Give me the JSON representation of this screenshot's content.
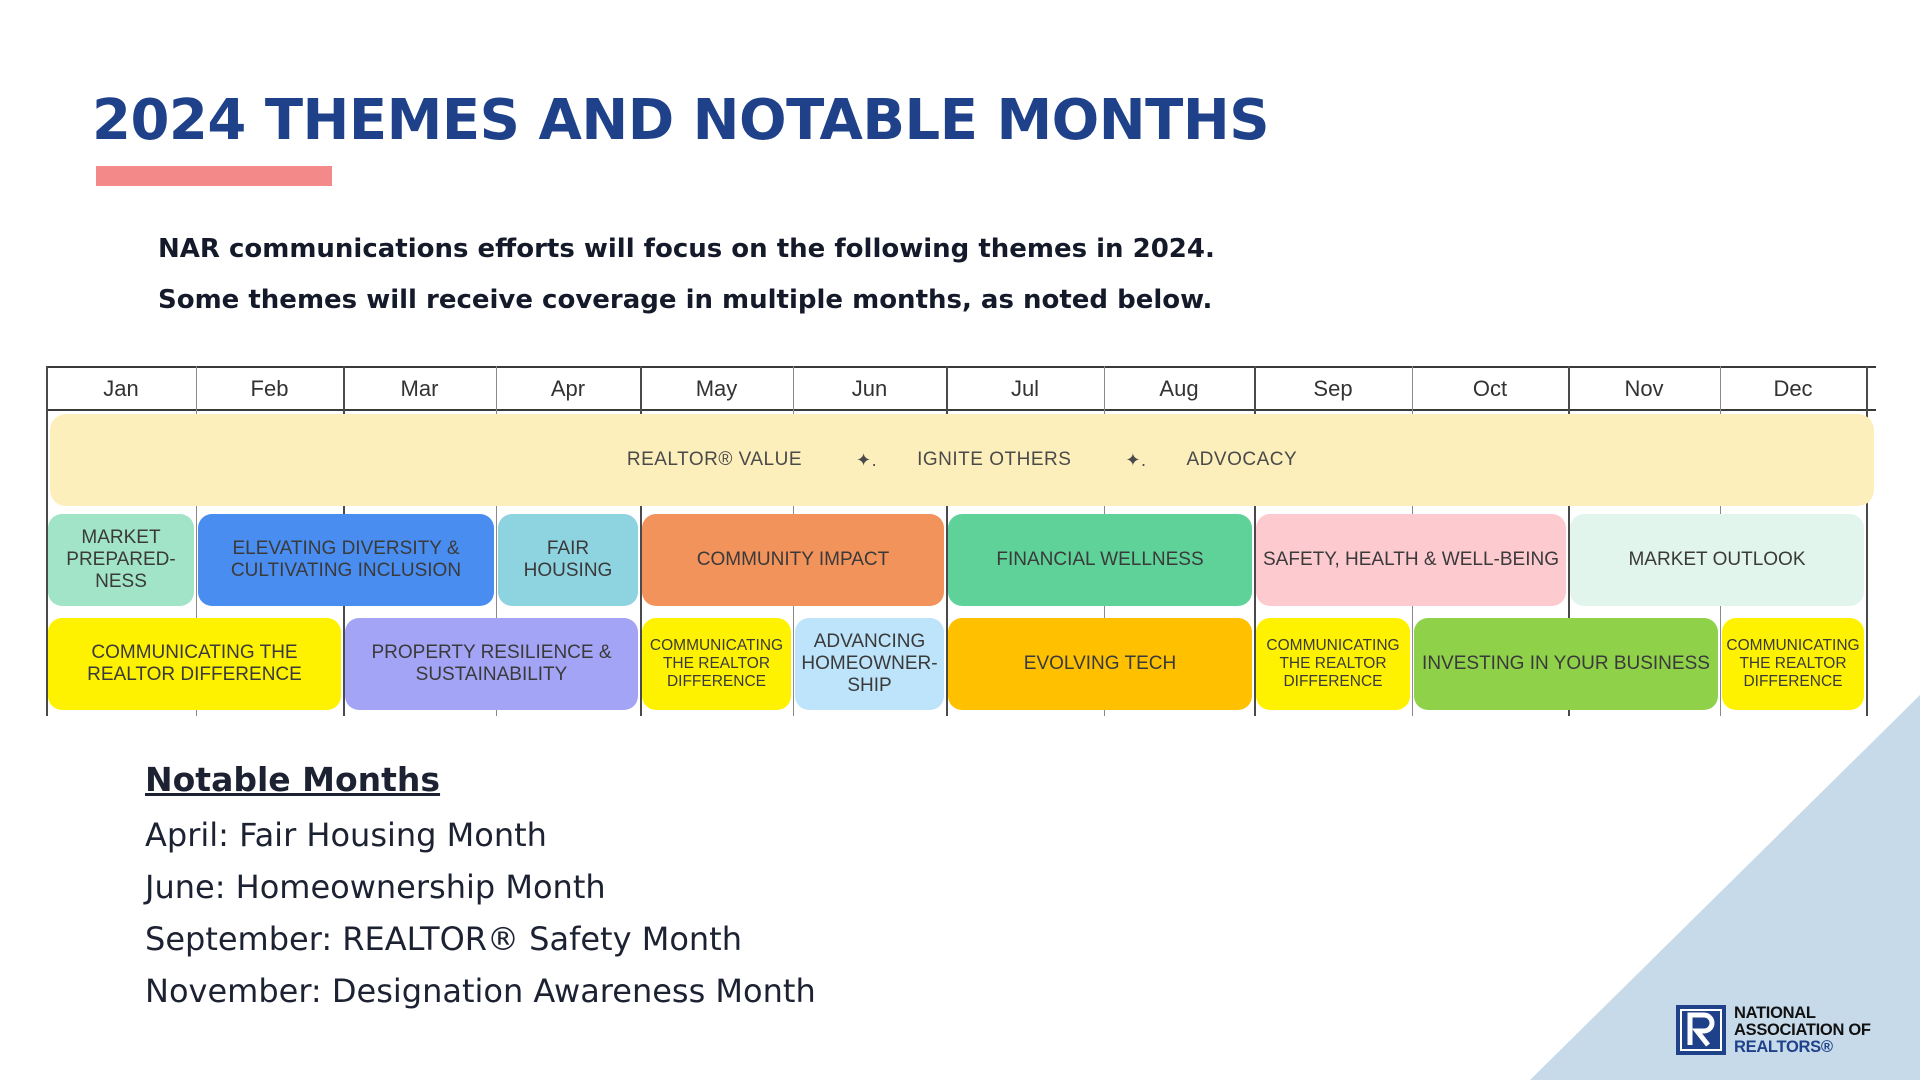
{
  "title": "2024 THEMES AND NOTABLE MONTHS",
  "intro": {
    "line1": "NAR communications efforts will focus on the following themes in 2024.",
    "line2": "Some themes will receive coverage in multiple months, as noted below."
  },
  "calendar": {
    "months": [
      "Jan",
      "Feb",
      "Mar",
      "Apr",
      "May",
      "Jun",
      "Jul",
      "Aug",
      "Sep",
      "Oct",
      "Nov",
      "Dec"
    ],
    "overarching": {
      "item1": "REALTOR® VALUE",
      "sep": "✦.",
      "item2": "IGNITE OTHERS",
      "item3": "ADVOCACY",
      "color": "#fdefbb"
    },
    "row1": [
      {
        "label": "MARKET PREPARED-NESS",
        "start_month": "Jan",
        "end_month": "Jan",
        "color": "#a2e4c8"
      },
      {
        "label": "ELEVATING DIVERSITY & CULTIVATING INCLUSION",
        "start_month": "Feb",
        "end_month": "Mar",
        "color": "#4a8df0"
      },
      {
        "label": "FAIR HOUSING",
        "start_month": "Apr",
        "end_month": "Apr",
        "color": "#8ed3e0"
      },
      {
        "label": "COMMUNITY IMPACT",
        "start_month": "May",
        "end_month": "Jun",
        "color": "#f2935c"
      },
      {
        "label": "FINANCIAL WELLNESS",
        "start_month": "Jul",
        "end_month": "Aug",
        "color": "#5fd29a"
      },
      {
        "label": "SAFETY, HEALTH & WELL-BEING",
        "start_month": "Sep",
        "end_month": "Oct",
        "color": "#fdcad0"
      },
      {
        "label": "MARKET OUTLOOK",
        "start_month": "Nov",
        "end_month": "Dec",
        "color": "#e2f5ed"
      }
    ],
    "row2": [
      {
        "label": "COMMUNICATING THE REALTOR DIFFERENCE",
        "start_month": "Jan",
        "end_month": "Feb",
        "color": "#fff200"
      },
      {
        "label": "PROPERTY RESILIENCE & SUSTAINABILITY",
        "start_month": "Mar",
        "end_month": "Apr",
        "color": "#a3a4f5"
      },
      {
        "label": "COMMUNICATING THE REALTOR DIFFERENCE",
        "start_month": "May",
        "end_month": "May",
        "color": "#fff200"
      },
      {
        "label": "ADVANCING HOMEOWNER-SHIP",
        "start_month": "Jun",
        "end_month": "Jun",
        "color": "#bde4fa"
      },
      {
        "label": "EVOLVING TECH",
        "start_month": "Jul",
        "end_month": "Aug",
        "color": "#ffc000"
      },
      {
        "label": "COMMUNICATING THE REALTOR DIFFERENCE",
        "start_month": "Sep",
        "end_month": "Sep",
        "color": "#fff200"
      },
      {
        "label": "INVESTING IN YOUR BUSINESS",
        "start_month": "Oct",
        "end_month": "Nov",
        "color": "#8fd24a"
      },
      {
        "label": "COMMUNICATING THE REALTOR DIFFERENCE",
        "start_month": "Dec",
        "end_month": "Dec",
        "color": "#fff200"
      }
    ]
  },
  "notable": {
    "heading": "Notable Months",
    "items": [
      "April: Fair Housing Month",
      "June: Homeownership Month",
      "September: REALTOR® Safety Month",
      "November: Designation Awareness Month"
    ]
  },
  "logo": {
    "line1": "NATIONAL",
    "line2": "ASSOCIATION OF",
    "line3": "REALTORS®",
    "color": "#1f4189"
  },
  "colors": {
    "title": "#1f4189",
    "accent_bar": "#f4898a",
    "corner": "#c7daea"
  }
}
